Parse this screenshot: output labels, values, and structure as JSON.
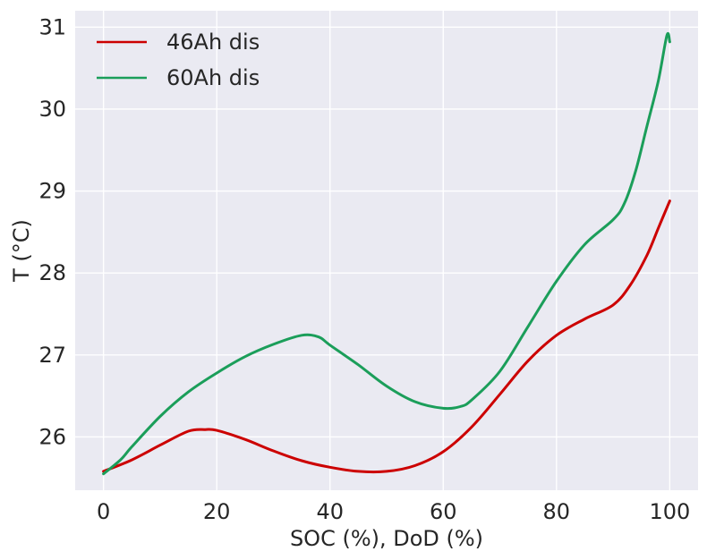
{
  "chart_data": {
    "type": "line",
    "title": "",
    "xlabel": "SOC (%), DoD (%)",
    "ylabel": "T (°C)",
    "xlim": [
      -5,
      105
    ],
    "ylim": [
      25.35,
      31.2
    ],
    "x_ticks": [
      0,
      20,
      40,
      60,
      80,
      100
    ],
    "y_ticks": [
      26,
      27,
      28,
      29,
      30,
      31
    ],
    "grid": true,
    "legend_position": "top-left",
    "background": "#EAEAF2",
    "series": [
      {
        "name": "46Ah dis",
        "color": "#CC0000",
        "x": [
          0,
          5,
          10,
          15,
          18,
          20,
          25,
          30,
          35,
          40,
          45,
          50,
          55,
          60,
          65,
          70,
          75,
          80,
          85,
          90,
          93,
          96,
          98,
          100
        ],
        "y": [
          25.58,
          25.72,
          25.9,
          26.07,
          26.09,
          26.08,
          25.97,
          25.83,
          25.71,
          25.63,
          25.58,
          25.58,
          25.65,
          25.82,
          26.12,
          26.52,
          26.93,
          27.24,
          27.44,
          27.61,
          27.85,
          28.22,
          28.55,
          28.88
        ]
      },
      {
        "name": "60Ah dis",
        "color": "#1B9E5A",
        "x": [
          0,
          3,
          5,
          10,
          15,
          20,
          25,
          30,
          35,
          38,
          40,
          45,
          50,
          55,
          60,
          63,
          65,
          70,
          75,
          80,
          85,
          90,
          92,
          94,
          96,
          98,
          99.5,
          100
        ],
        "y": [
          25.55,
          25.72,
          25.88,
          26.25,
          26.55,
          26.78,
          26.98,
          27.13,
          27.24,
          27.22,
          27.12,
          26.88,
          26.62,
          26.43,
          26.35,
          26.37,
          26.45,
          26.8,
          27.35,
          27.9,
          28.35,
          28.65,
          28.85,
          29.25,
          29.8,
          30.35,
          30.9,
          30.82
        ]
      }
    ]
  }
}
